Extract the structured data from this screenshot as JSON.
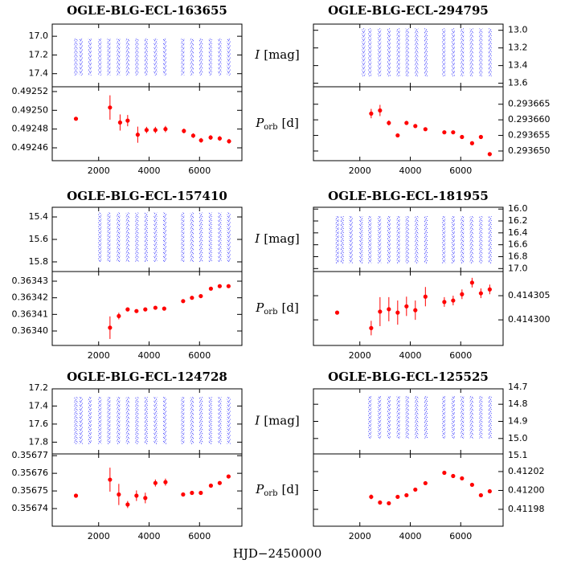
{
  "chart_data": {
    "type": "lightcurve-period-grid",
    "x_label": "HJD−2450000",
    "xlim": [
      160,
      7680
    ],
    "xticks": [
      2000,
      4000,
      6000
    ],
    "lc_label": {
      "symbol": "I",
      "unit": "[mag]"
    },
    "period_label": {
      "symbol": "P",
      "subscript": "orb",
      "unit": "[d]"
    },
    "lc_color": "#0000ff",
    "period_color": "#ff0000",
    "panels": [
      {
        "title": "OGLE-BLG-ECL-163655",
        "lc": {
          "ylim": [
            17.54,
            16.87
          ],
          "yticks": [
            {
              "value": 17,
              "label": "17.0"
            },
            17.2,
            17.4
          ],
          "band": [
            17.02,
            17.42
          ],
          "season_x": [
            1100,
            1300,
            1650,
            2050,
            2400,
            2780,
            3150,
            3520,
            3880,
            4250,
            4620,
            5330,
            5700,
            6060,
            6430,
            6800,
            7160
          ]
        },
        "period": {
          "ylim": [
            0.4924463,
            0.4925251
          ],
          "yticks": [
            0.49246,
            0.49248,
            {
              "value": 0.4925,
              "label": "0.49250"
            },
            0.49252
          ],
          "x": [
            1100,
            2450,
            2850,
            3150,
            3550,
            3900,
            4250,
            4650,
            5380,
            5750,
            6060,
            6440,
            6800,
            7170
          ],
          "values": [
            0.492491,
            0.492503,
            0.492487,
            0.492489,
            0.492474,
            0.492479,
            0.492479,
            0.49248,
            0.492478,
            0.492473,
            0.492468,
            0.492471,
            0.49247,
            0.492467
          ],
          "errors": [
            1.5e-06,
            1.3e-05,
            8.6e-06,
            6e-06,
            8.6e-06,
            3.4e-06,
            3.4e-06,
            3.4e-06,
            2.5e-06,
            2.5e-06,
            2.5e-06,
            2.5e-06,
            2.5e-06,
            2.5e-06
          ]
        }
      },
      {
        "title": "OGLE-BLG-ECL-294795",
        "lc": {
          "ylim": [
            13.64,
            12.93
          ],
          "yticks": [
            {
              "value": 13,
              "label": "13.0"
            },
            13.2,
            13.4,
            13.6
          ],
          "band": [
            12.98,
            13.52
          ],
          "season_x": [
            2150,
            2400,
            2780,
            3150,
            3520,
            3880,
            4250,
            4620,
            5330,
            5700,
            6060,
            6430,
            6800,
            7160
          ]
        },
        "period": {
          "ylim": [
            0.2936469,
            0.2936706
          ],
          "yticks": [
            0.293665,
            {
              "value": 0.29366,
              "label": "0.293660"
            },
            0.293655,
            {
              "value": 0.29365,
              "label": "0.293650"
            }
          ],
          "x": [
            2450,
            2800,
            3150,
            3500,
            3850,
            4200,
            4600,
            5350,
            5700,
            6050,
            6450,
            6800,
            7150
          ],
          "values": [
            0.293662,
            0.293663,
            0.293659,
            0.293655,
            0.293659,
            0.293658,
            0.293657,
            0.293656,
            0.293656,
            0.2936545,
            0.2936525,
            0.2936545,
            0.293649
          ],
          "errors": [
            1.5e-06,
            1.8e-06,
            8e-07,
            6e-07,
            4e-07,
            4e-07,
            4e-07,
            4e-07,
            4e-07,
            4e-07,
            4e-07,
            4e-07,
            4e-07
          ]
        }
      },
      {
        "title": "OGLE-BLG-ECL-157410",
        "lc": {
          "ylim": [
            15.886,
            15.314
          ],
          "yticks": [
            15.4,
            15.6,
            15.8
          ],
          "band": [
            15.36,
            15.8
          ],
          "season_x": [
            2050,
            2400,
            2780,
            3150,
            3520,
            3880,
            4250,
            4620,
            5330,
            5700,
            6060,
            6430,
            6800,
            7160
          ]
        },
        "period": {
          "ylim": [
            0.3633913,
            0.3634358
          ],
          "yticks": [
            {
              "value": 0.3634,
              "label": "0.36340"
            },
            0.36341,
            0.36342,
            0.36343
          ],
          "x": [
            2450,
            2800,
            3150,
            3500,
            3850,
            4250,
            4600,
            5350,
            5700,
            6050,
            6450,
            6800,
            7150
          ],
          "values": [
            0.363402,
            0.363409,
            0.363413,
            0.363412,
            0.363413,
            0.363414,
            0.3634135,
            0.363418,
            0.36342,
            0.363421,
            0.3634255,
            0.363427,
            0.363427
          ],
          "errors": [
            6.8e-06,
            2e-06,
            1.2e-06,
            8e-07,
            8e-07,
            8e-07,
            8e-07,
            5e-07,
            5e-07,
            5e-07,
            5e-07,
            5e-07,
            5e-07
          ]
        }
      },
      {
        "title": "OGLE-BLG-ECL-181955",
        "lc": {
          "ylim": [
            17.05,
            15.97
          ],
          "yticks": [
            {
              "value": 16,
              "label": "16.0"
            },
            16.2,
            16.4,
            16.6,
            16.8,
            {
              "value": 17,
              "label": "17.0"
            }
          ],
          "band": [
            16.12,
            16.92
          ],
          "season_x": [
            1100,
            1300,
            1650,
            2050,
            2400,
            2780,
            3150,
            3520,
            3880,
            4250,
            4620,
            5330,
            5700,
            6060,
            6430,
            6800,
            7160
          ]
        },
        "period": {
          "ylim": [
            0.4142947,
            0.41431
          ],
          "yticks": [
            0.414305,
            {
              "value": 0.4143,
              "label": "0.414300"
            }
          ],
          "x": [
            1100,
            2450,
            2800,
            3150,
            3500,
            3850,
            4200,
            4600,
            5350,
            5700,
            6050,
            6450,
            6800,
            7150
          ],
          "values": [
            0.4143015,
            0.4142983,
            0.4143017,
            0.4143022,
            0.4143015,
            0.4143028,
            0.414302,
            0.4143048,
            0.4143037,
            0.414304,
            0.4143053,
            0.4143077,
            0.4143055,
            0.4143063
          ],
          "errors": [
            3e-07,
            1.5e-06,
            3e-06,
            2.5e-06,
            2.5e-06,
            2e-06,
            2e-06,
            2e-06,
            1e-06,
            1e-06,
            1e-06,
            1e-06,
            1e-06,
            1e-06
          ]
        }
      },
      {
        "title": "OGLE-BLG-ECL-124728",
        "lc": {
          "ylim": [
            17.93,
            17.21
          ],
          "yticks": [
            17.2,
            17.4,
            17.6,
            17.8
          ],
          "band": [
            17.3,
            17.82
          ],
          "season_x": [
            1100,
            1300,
            1650,
            2050,
            2400,
            2780,
            3150,
            3520,
            3880,
            4250,
            4620,
            5330,
            5700,
            6060,
            6430,
            6800,
            7160
          ]
        },
        "period": {
          "ylim": [
            0.35673,
            0.356771
          ],
          "yticks": [
            0.35677,
            0.35676,
            0.35675,
            0.35674
          ],
          "x": [
            1100,
            2450,
            2800,
            3150,
            3500,
            3850,
            4250,
            4650,
            5350,
            5700,
            6050,
            6450,
            6800,
            7150
          ],
          "values": [
            0.3567473,
            0.3567564,
            0.356748,
            0.3567423,
            0.3567473,
            0.356746,
            0.3567545,
            0.356755,
            0.356748,
            0.3567489,
            0.3567489,
            0.356753,
            0.3567545,
            0.3567582
          ],
          "errors": [
            4e-07,
            6.8e-06,
            6e-06,
            2e-06,
            3e-06,
            3e-06,
            2e-06,
            2e-06,
            1e-06,
            1e-06,
            1e-06,
            1e-06,
            1e-06,
            1e-06
          ]
        }
      },
      {
        "title": "OGLE-BLG-ECL-125525",
        "lc": {
          "ylim": [
            15.09,
            14.71
          ],
          "yticks": [
            14.7,
            14.8,
            14.9,
            {
              "value": 15,
              "label": "15.0"
            },
            15.1
          ],
          "band": [
            14.75,
            15.0
          ],
          "season_x": [
            2400,
            2780,
            3150,
            3520,
            3880,
            4250,
            4620,
            5330,
            5700,
            6060,
            6430,
            6800,
            7160
          ]
        },
        "period": {
          "ylim": [
            0.4119621,
            0.4120387
          ],
          "yticks": [
            0.41202,
            {
              "value": 0.412,
              "label": "0.41200"
            },
            0.41198
          ],
          "x": [
            2450,
            2800,
            3150,
            3500,
            3850,
            4200,
            4600,
            5350,
            5700,
            6050,
            6450,
            6800,
            7150
          ],
          "values": [
            0.4119932,
            0.4119872,
            0.4119864,
            0.4119932,
            0.4119949,
            0.4120009,
            0.4120077,
            0.4120187,
            0.4120153,
            0.4120128,
            0.412006,
            0.4119949,
            0.4119991
          ],
          "errors": [
            2.5e-06,
            1.5e-06,
            1.5e-06,
            1.2e-06,
            1.2e-06,
            1.2e-06,
            1.2e-06,
            1.2e-06,
            1.2e-06,
            1.2e-06,
            1.2e-06,
            1.5e-06,
            1.2e-06
          ]
        }
      }
    ]
  }
}
